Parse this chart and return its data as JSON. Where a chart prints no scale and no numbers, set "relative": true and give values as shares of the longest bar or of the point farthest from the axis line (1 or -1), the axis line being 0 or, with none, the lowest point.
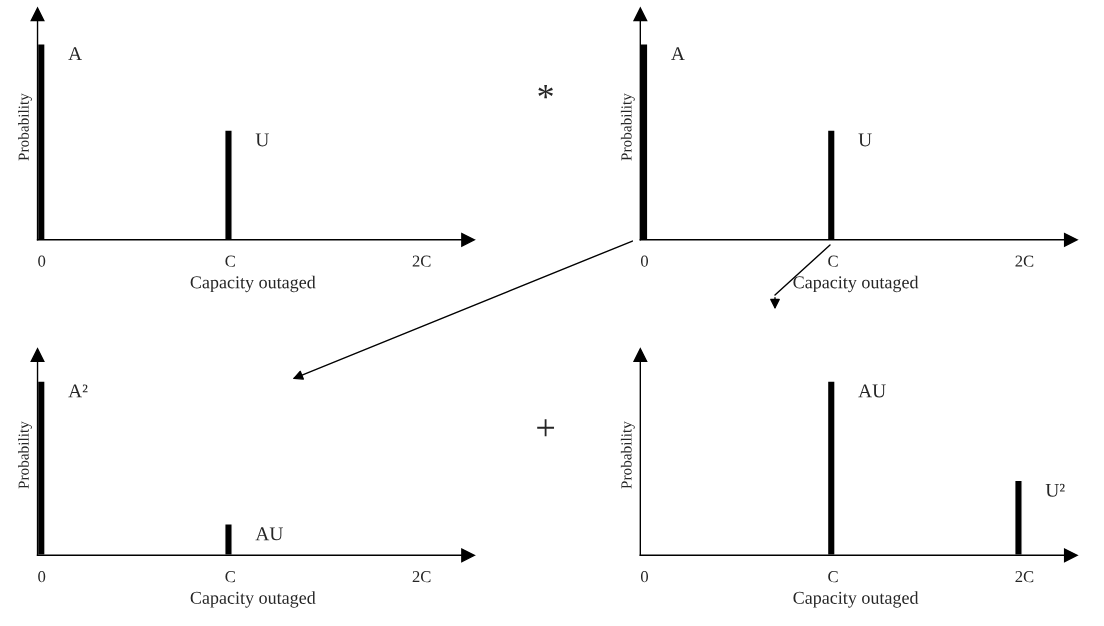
{
  "chart_data": [
    {
      "type": "bar",
      "relative": true,
      "categories": [
        "0",
        "C",
        "2C"
      ],
      "values": [
        1,
        0.56,
        null
      ],
      "color": "#000000",
      "xlabel": "Capacity outaged",
      "ylabel": "Probability",
      "annotations": [
        {
          "text": "A",
          "x": "0",
          "y": 1
        },
        {
          "text": "U",
          "x": "C",
          "y": 0.56
        },
        "*"
      ]
    },
    {
      "type": "bar",
      "relative": true,
      "categories": [
        "0",
        "C",
        "2C"
      ],
      "values": [
        1,
        0.56,
        null
      ],
      "color": "#000000",
      "xlabel": "Capacity outaged",
      "ylabel": "Probability",
      "annotations": [
        {
          "text": "A",
          "x": "0",
          "y": 1
        },
        {
          "text": "U",
          "x": "C",
          "y": 0.56
        }
      ]
    },
    {
      "type": "bar",
      "relative": true,
      "categories": [
        "0",
        "C",
        "2C"
      ],
      "values": [
        1,
        0.18,
        null
      ],
      "color": "#000000",
      "xlabel": "Capacity outaged",
      "ylabel": "Probability",
      "annotations": [
        {
          "text": "A²",
          "x": "0",
          "y": 1
        },
        {
          "text": "AU",
          "x": "C",
          "y": 0.18
        },
        "+"
      ]
    },
    {
      "type": "bar",
      "relative": true,
      "categories": [
        "0",
        "C",
        "2C"
      ],
      "values": [
        null,
        1,
        0.43
      ],
      "color": "#000000",
      "xlabel": "Capacity outaged",
      "ylabel": "Probability",
      "annotations": [
        {
          "text": "AU",
          "x": "C",
          "y": 1
        },
        {
          "text": "U²",
          "x": "2C",
          "y": 0.43
        }
      ]
    }
  ]
}
